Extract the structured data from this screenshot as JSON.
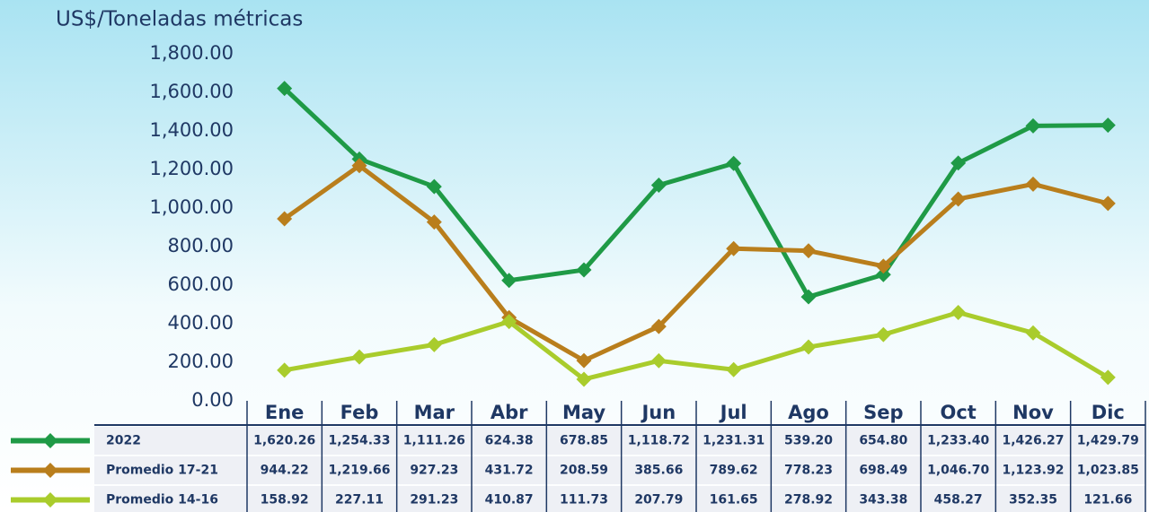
{
  "chart_data": {
    "type": "line",
    "y_axis_label": "US$/Toneladas métricas",
    "categories": [
      "Ene",
      "Feb",
      "Mar",
      "Abr",
      "May",
      "Jun",
      "Jul",
      "Ago",
      "Sep",
      "Oct",
      "Nov",
      "Dic"
    ],
    "ylim": [
      0,
      1800
    ],
    "yticks": [
      {
        "value": 0,
        "label": "0.00"
      },
      {
        "value": 200,
        "label": "200.00"
      },
      {
        "value": 400,
        "label": "400.00"
      },
      {
        "value": 600,
        "label": "600.00"
      },
      {
        "value": 800,
        "label": "800.00"
      },
      {
        "value": 1000,
        "label": "1,000.00"
      },
      {
        "value": 1200,
        "label": "1,200.00"
      },
      {
        "value": 1400,
        "label": "1,400.00"
      },
      {
        "value": 1600,
        "label": "1,600.00"
      },
      {
        "value": 1800,
        "label": "1,800.00"
      }
    ],
    "series": [
      {
        "name": "2022",
        "color": "#1f9a46",
        "values": [
          1620.26,
          1254.33,
          1111.26,
          624.38,
          678.85,
          1118.72,
          1231.31,
          539.2,
          654.8,
          1233.4,
          1426.27,
          1429.79
        ],
        "value_labels": [
          "1,620.26",
          "1,254.33",
          "1,111.26",
          "624.38",
          "678.85",
          "1,118.72",
          "1,231.31",
          "539.20",
          "654.80",
          "1,233.40",
          "1,426.27",
          "1,429.79"
        ]
      },
      {
        "name": "Promedio 17-21",
        "color": "#b97e1c",
        "values": [
          944.22,
          1219.66,
          927.23,
          431.72,
          208.59,
          385.66,
          789.62,
          778.23,
          698.49,
          1046.7,
          1123.92,
          1023.85
        ],
        "value_labels": [
          "944.22",
          "1,219.66",
          "927.23",
          "431.72",
          "208.59",
          "385.66",
          "789.62",
          "778.23",
          "698.49",
          "1,046.70",
          "1,123.92",
          "1,023.85"
        ]
      },
      {
        "name": "Promedio 14-16",
        "color": "#a9cc2c",
        "values": [
          158.92,
          227.11,
          291.23,
          410.87,
          111.73,
          207.79,
          161.65,
          278.92,
          343.38,
          458.27,
          352.35,
          121.66
        ],
        "value_labels": [
          "158.92",
          "227.11",
          "291.23",
          "410.87",
          "111.73",
          "207.79",
          "161.65",
          "278.92",
          "343.38",
          "458.27",
          "352.35",
          "121.66"
        ]
      }
    ]
  }
}
